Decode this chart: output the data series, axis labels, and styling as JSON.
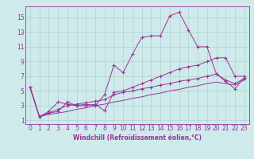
{
  "xlabel": "Windchill (Refroidissement éolien,°C)",
  "background_color": "#ceeaea",
  "grid_color": "#aacccc",
  "line_color": "#993399",
  "xlim": [
    -0.5,
    23.5
  ],
  "ylim": [
    0.5,
    16.5
  ],
  "xticks": [
    0,
    1,
    2,
    3,
    4,
    5,
    6,
    7,
    8,
    9,
    10,
    11,
    12,
    13,
    14,
    15,
    16,
    17,
    18,
    19,
    20,
    21,
    22,
    23
  ],
  "yticks": [
    1,
    3,
    5,
    7,
    9,
    11,
    13,
    15
  ],
  "series1": [
    [
      0,
      5.5
    ],
    [
      1,
      1.5
    ],
    [
      2,
      2.0
    ],
    [
      3,
      2.2
    ],
    [
      4,
      3.5
    ],
    [
      5,
      3.0
    ],
    [
      6,
      3.2
    ],
    [
      7,
      3.0
    ],
    [
      8,
      4.5
    ],
    [
      9,
      8.5
    ],
    [
      10,
      7.5
    ],
    [
      11,
      10.0
    ],
    [
      12,
      12.3
    ],
    [
      13,
      12.5
    ],
    [
      14,
      12.5
    ],
    [
      15,
      15.2
    ],
    [
      16,
      15.7
    ],
    [
      17,
      13.3
    ],
    [
      18,
      11.0
    ],
    [
      19,
      11.0
    ],
    [
      20,
      7.3
    ],
    [
      21,
      6.3
    ],
    [
      22,
      5.3
    ],
    [
      23,
      6.8
    ]
  ],
  "series2": [
    [
      0,
      5.5
    ],
    [
      1,
      1.5
    ],
    [
      2,
      2.2
    ],
    [
      3,
      3.5
    ],
    [
      4,
      3.2
    ],
    [
      5,
      3.0
    ],
    [
      6,
      3.0
    ],
    [
      7,
      3.2
    ],
    [
      8,
      2.3
    ],
    [
      9,
      4.8
    ],
    [
      10,
      5.0
    ],
    [
      11,
      5.5
    ],
    [
      12,
      6.0
    ],
    [
      13,
      6.5
    ],
    [
      14,
      7.0
    ],
    [
      15,
      7.5
    ],
    [
      16,
      8.0
    ],
    [
      17,
      8.3
    ],
    [
      18,
      8.5
    ],
    [
      19,
      9.0
    ],
    [
      20,
      9.5
    ],
    [
      21,
      9.5
    ],
    [
      22,
      7.0
    ],
    [
      23,
      7.0
    ]
  ],
  "series3": [
    [
      0,
      5.5
    ],
    [
      1,
      1.5
    ],
    [
      2,
      2.0
    ],
    [
      3,
      2.5
    ],
    [
      4,
      3.0
    ],
    [
      5,
      3.2
    ],
    [
      6,
      3.4
    ],
    [
      7,
      3.6
    ],
    [
      8,
      3.8
    ],
    [
      9,
      4.5
    ],
    [
      10,
      4.8
    ],
    [
      11,
      5.0
    ],
    [
      12,
      5.3
    ],
    [
      13,
      5.5
    ],
    [
      14,
      5.8
    ],
    [
      15,
      6.0
    ],
    [
      16,
      6.3
    ],
    [
      17,
      6.5
    ],
    [
      18,
      6.7
    ],
    [
      19,
      7.0
    ],
    [
      20,
      7.3
    ],
    [
      21,
      6.5
    ],
    [
      22,
      6.0
    ],
    [
      23,
      6.7
    ]
  ],
  "series4": [
    [
      0,
      5.5
    ],
    [
      1,
      1.5
    ],
    [
      2,
      1.8
    ],
    [
      3,
      2.0
    ],
    [
      4,
      2.2
    ],
    [
      5,
      2.5
    ],
    [
      6,
      2.7
    ],
    [
      7,
      3.0
    ],
    [
      8,
      3.2
    ],
    [
      9,
      3.5
    ],
    [
      10,
      3.7
    ],
    [
      11,
      4.0
    ],
    [
      12,
      4.2
    ],
    [
      13,
      4.5
    ],
    [
      14,
      4.7
    ],
    [
      15,
      5.0
    ],
    [
      16,
      5.2
    ],
    [
      17,
      5.5
    ],
    [
      18,
      5.7
    ],
    [
      19,
      6.0
    ],
    [
      20,
      6.2
    ],
    [
      21,
      6.0
    ],
    [
      22,
      5.8
    ],
    [
      23,
      6.5
    ]
  ],
  "tick_fontsize": 5.5,
  "xlabel_fontsize": 5.5
}
